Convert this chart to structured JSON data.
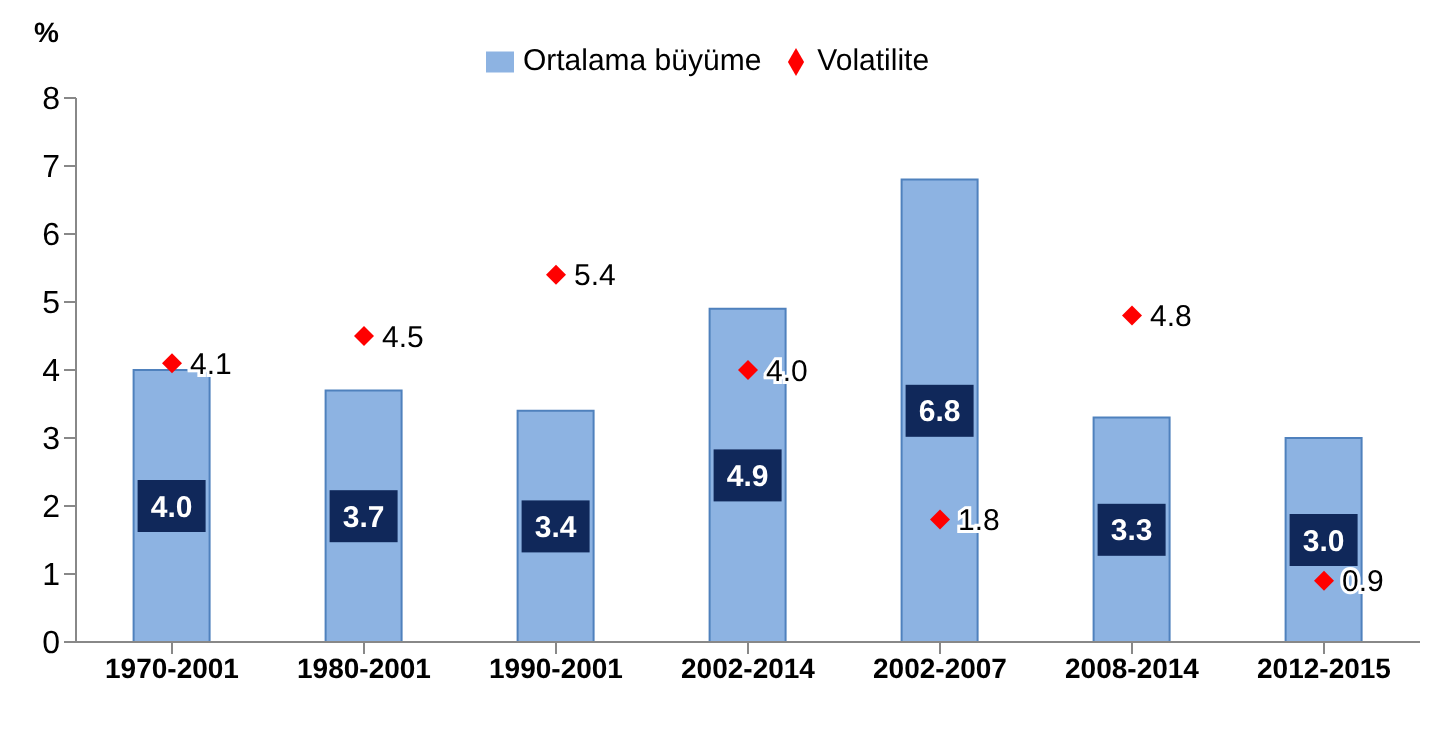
{
  "chart_data": {
    "type": "bar",
    "ylabel": "%",
    "categories": [
      "1970-2001",
      "1980-2001",
      "1990-2001",
      "2002-2014",
      "2002-2007",
      "2008-2014",
      "2012-2015"
    ],
    "series": [
      {
        "name": "Ortalama büyüme",
        "color": "#8db3e2",
        "values": [
          4.0,
          3.7,
          3.4,
          4.9,
          6.8,
          3.3,
          3.0
        ],
        "value_labels": [
          "4.0",
          "3.7",
          "3.4",
          "4.9",
          "6.8",
          "3.3",
          "3.0"
        ]
      },
      {
        "name": "Volatilite",
        "type": "scatter",
        "color": "#ff0000",
        "values": [
          4.1,
          4.5,
          5.4,
          4.0,
          1.8,
          4.8,
          0.9
        ],
        "value_labels": [
          "4.1",
          "4.5",
          "5.4",
          "4.0",
          "1.8",
          "4.8",
          "0.9"
        ]
      }
    ],
    "ylim": [
      0,
      8
    ],
    "yticks": [
      0,
      1,
      2,
      3,
      4,
      5,
      6,
      7,
      8
    ],
    "legend": "top",
    "marker": "diamond"
  }
}
